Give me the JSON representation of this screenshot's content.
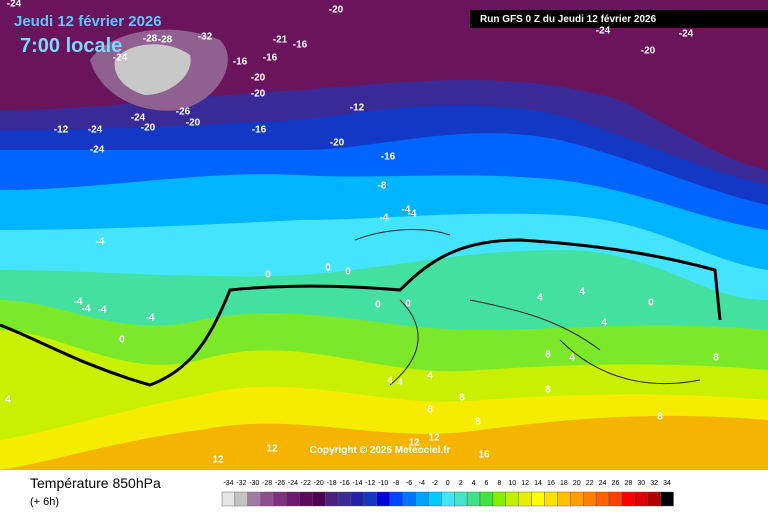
{
  "header": {
    "date": "Jeudi 12 février 2026",
    "time": "7:00 locale",
    "run": "Run GFS 0 Z du Jeudi 12 février 2026"
  },
  "map": {
    "labels": [
      "-24",
      "-28",
      "-32",
      "-24",
      "-28",
      "-21",
      "-16",
      "-16",
      "-20",
      "-20",
      "-16",
      "-24",
      "-20",
      "-26",
      "-20",
      "-12",
      "-24",
      "-24",
      "-16",
      "-20",
      "-12",
      "-16",
      "-8",
      "-4",
      "-4",
      "-4",
      "-4",
      "0",
      "0",
      "0",
      "0",
      "0",
      "-4",
      "-4",
      "-4",
      "-4",
      "0",
      "4",
      "4",
      "4",
      "4",
      "4",
      "8",
      "4",
      "4",
      "8",
      "8",
      "8",
      "8",
      "8",
      "4",
      "12",
      "12",
      "12",
      "12",
      "16",
      "8",
      "-24",
      "-20",
      "-24",
      "-20",
      "0"
    ],
    "copyright": "Copyright © 2026 Meteociel.fr"
  },
  "footer": {
    "title": "Température 850hPa",
    "step": "(+ 6h)"
  },
  "legend": {
    "values": [
      -34,
      -32,
      -30,
      -28,
      -26,
      -24,
      -22,
      -20,
      -18,
      -16,
      -14,
      -12,
      -10,
      -8,
      -6,
      -4,
      -2,
      0,
      2,
      4,
      6,
      8,
      10,
      12,
      14,
      16,
      18,
      20,
      22,
      24,
      26,
      28,
      30,
      32,
      34
    ],
    "colors": [
      "#e4e4e4",
      "#c4c4c4",
      "#a37aa3",
      "#8f5090",
      "#7d3180",
      "#6b1a6e",
      "#5c0a5e",
      "#4d004f",
      "#4d2080",
      "#3a2a98",
      "#2222a8",
      "#1236c4",
      "#0000e0",
      "#0044ff",
      "#0074ff",
      "#00a4ff",
      "#00ccff",
      "#44e4ff",
      "#44e4c8",
      "#40e088",
      "#44e044",
      "#84f000",
      "#c0f000",
      "#e4f000",
      "#ffff00",
      "#ffe000",
      "#ffc000",
      "#ffa000",
      "#ff8000",
      "#ff6000",
      "#ff4000",
      "#ff0000",
      "#e00000",
      "#b00000",
      "#000000"
    ]
  }
}
